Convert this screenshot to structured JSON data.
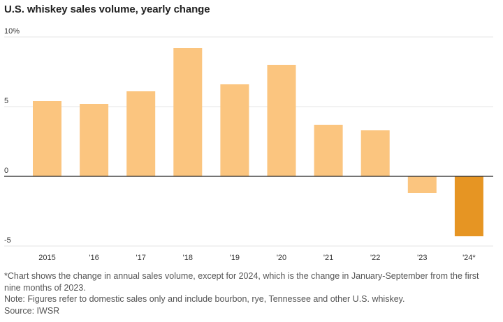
{
  "chart_data": {
    "type": "bar",
    "title": "U.S. whiskey sales volume, yearly change",
    "xlabel": "",
    "ylabel": "",
    "categories": [
      "2015",
      "'16",
      "'17",
      "'18",
      "'19",
      "'20",
      "'21",
      "'22",
      "'23",
      "'24*"
    ],
    "values": [
      5.4,
      5.2,
      6.1,
      9.2,
      6.6,
      8.0,
      3.7,
      3.3,
      -1.2,
      -4.3
    ],
    "highlight_index": 9,
    "ylim": [
      -5,
      10
    ],
    "yticks": [
      {
        "value": 10,
        "label": "10%"
      },
      {
        "value": 5,
        "label": "5"
      },
      {
        "value": 0,
        "label": "0"
      },
      {
        "value": -5,
        "label": "-5"
      }
    ],
    "grid": true,
    "colors": {
      "bar": "#fbc57f",
      "highlight": "#e69523",
      "zero_line": "#222222",
      "grid": "#e4e4e4"
    }
  },
  "notes": {
    "footnote": "*Chart shows the change in annual sales volume, except for 2024, which is the change in January-September from the first nine months of 2023.",
    "note": "Note: Figures refer to domestic sales only and include bourbon, rye, Tennessee and other U.S. whiskey.",
    "source": "Source: IWSR"
  }
}
